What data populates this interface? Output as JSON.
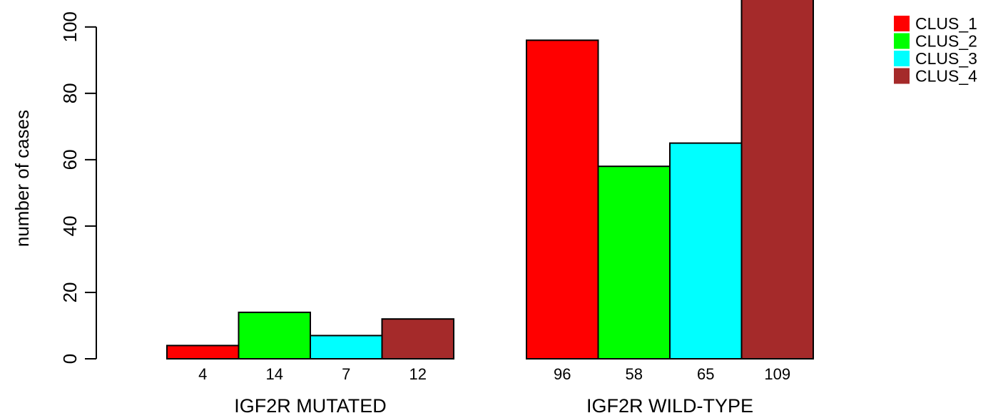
{
  "chart_data": {
    "type": "bar",
    "groups": [
      "IGF2R MUTATED",
      "IGF2R WILD-TYPE"
    ],
    "series": [
      {
        "name": "CLUS_1",
        "color": "#ff0000",
        "values": [
          4,
          96
        ]
      },
      {
        "name": "CLUS_2",
        "color": "#00ff00",
        "values": [
          14,
          58
        ]
      },
      {
        "name": "CLUS_3",
        "color": "#00ffff",
        "values": [
          7,
          65
        ]
      },
      {
        "name": "CLUS_4",
        "color": "#a52a2a",
        "values": [
          12,
          109
        ]
      }
    ],
    "ylabel": "number of cases",
    "yticks": [
      0,
      20,
      40,
      60,
      80,
      100
    ],
    "legend_position": "top-right",
    "grid": false
  }
}
